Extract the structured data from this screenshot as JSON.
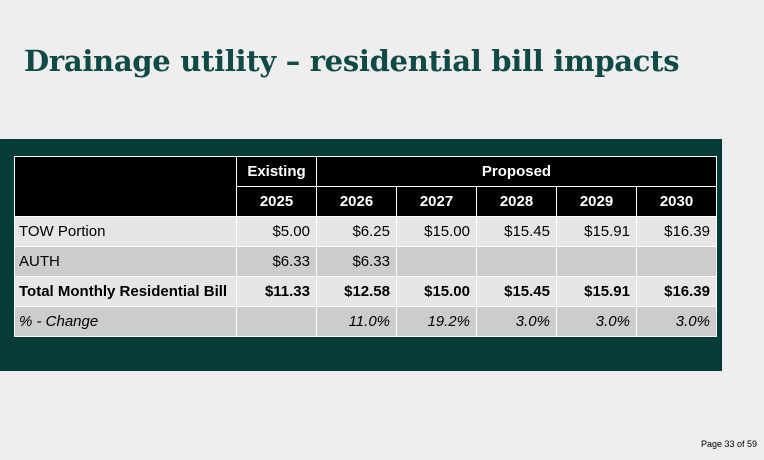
{
  "title": "Drainage utility – residential bill impacts",
  "table": {
    "group_headers": {
      "existing": "Existing",
      "proposed": "Proposed"
    },
    "years": [
      "2025",
      "2026",
      "2027",
      "2028",
      "2029",
      "2030"
    ],
    "rows": [
      {
        "label": "TOW Portion",
        "values": [
          "$5.00",
          "$6.25",
          "$15.00",
          "$15.45",
          "$15.91",
          "$16.39"
        ]
      },
      {
        "label": "AUTH",
        "values": [
          "$6.33",
          "$6.33",
          "",
          "",
          "",
          ""
        ]
      },
      {
        "label": "Total Monthly Residential Bill",
        "values": [
          "$11.33",
          "$12.58",
          "$15.00",
          "$15.45",
          "$15.91",
          "$16.39"
        ]
      },
      {
        "label": "% - Change",
        "values": [
          "",
          "11.0%",
          "19.2%",
          "3.0%",
          "3.0%",
          "3.0%"
        ]
      }
    ]
  },
  "footer": {
    "page_label": "Page 33 of 59"
  },
  "colors": {
    "title": "#0f4a46",
    "panel": "#053c38",
    "header_bg": "#000000",
    "row_light": "#e6e6e6",
    "row_dark": "#cccccc"
  }
}
